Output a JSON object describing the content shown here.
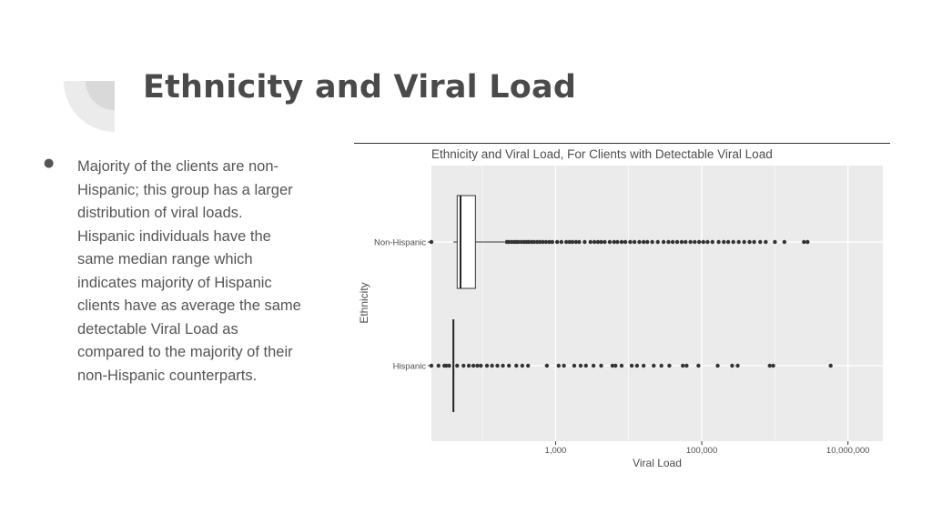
{
  "slide": {
    "title": "Ethnicity and Viral Load",
    "bullet_lines": [
      "Majority of the clients are non-",
      "Hispanic; this group has a larger",
      "distribution of viral loads.",
      "Hispanic individuals have the",
      "same median range which",
      "indicates majority of Hispanic",
      "clients have as average the same",
      "detectable Viral Load as",
      "compared to the majority of their",
      "non-Hispanic counterparts."
    ],
    "bullet_symbol": "●"
  },
  "colors": {
    "title": "#4a4a4a",
    "text": "#555555",
    "panel": "#ebebeb",
    "grid": "#ffffff",
    "points": "#333333",
    "deco_light": "#ebebeb",
    "deco_dark": "#d9d9d9"
  },
  "chart_data": {
    "type": "boxplot",
    "title": "Ethnicity and Viral Load, For Clients with Detectable Viral Load",
    "xlabel": "Viral Load",
    "ylabel": "Ethnicity",
    "x_scale": "log10",
    "xlim": [
      20,
      30000000
    ],
    "x_ticks": [
      {
        "value": 1000,
        "label": "1,000"
      },
      {
        "value": 100000,
        "label": "100,000"
      },
      {
        "value": 10000000,
        "label": "10,000,000"
      }
    ],
    "grid": true,
    "categories": [
      "Non-Hispanic",
      "Hispanic"
    ],
    "boxes": [
      {
        "category": "Non-Hispanic",
        "whisker_low": 40,
        "q1": 45,
        "median": 50,
        "q3": 80,
        "whisker_high": 200
      },
      {
        "category": "Hispanic",
        "whisker_low": 40,
        "q1": 40,
        "median": 40,
        "q3": 40,
        "whisker_high": 40
      }
    ],
    "outliers": {
      "Non-Hispanic": [
        20,
        215,
        230,
        250,
        270,
        290,
        310,
        340,
        370,
        400,
        430,
        470,
        510,
        560,
        610,
        670,
        740,
        820,
        900,
        1050,
        1200,
        1400,
        1550,
        1700,
        1900,
        2100,
        2500,
        3000,
        3400,
        3800,
        4200,
        4700,
        5500,
        6300,
        7000,
        8000,
        9000,
        10500,
        12000,
        14000,
        16000,
        18000,
        21000,
        25000,
        30000,
        35000,
        40000,
        46000,
        53000,
        60000,
        70000,
        80000,
        92000,
        105000,
        120000,
        140000,
        170000,
        200000,
        230000,
        270000,
        320000,
        380000,
        450000,
        520000,
        630000,
        750000,
        1000000,
        1350000,
        2500000,
        2800000
      ],
      "Hispanic": [
        20,
        25,
        30,
        32,
        35,
        45,
        55,
        65,
        75,
        85,
        95,
        115,
        135,
        160,
        190,
        230,
        290,
        350,
        420,
        760,
        1100,
        1300,
        1800,
        2200,
        2600,
        3300,
        4200,
        6000,
        6600,
        8000,
        11000,
        13000,
        16000,
        22000,
        28000,
        36000,
        55000,
        62000,
        90000,
        165000,
        260000,
        310000,
        850000,
        950000,
        5800000
      ]
    }
  }
}
